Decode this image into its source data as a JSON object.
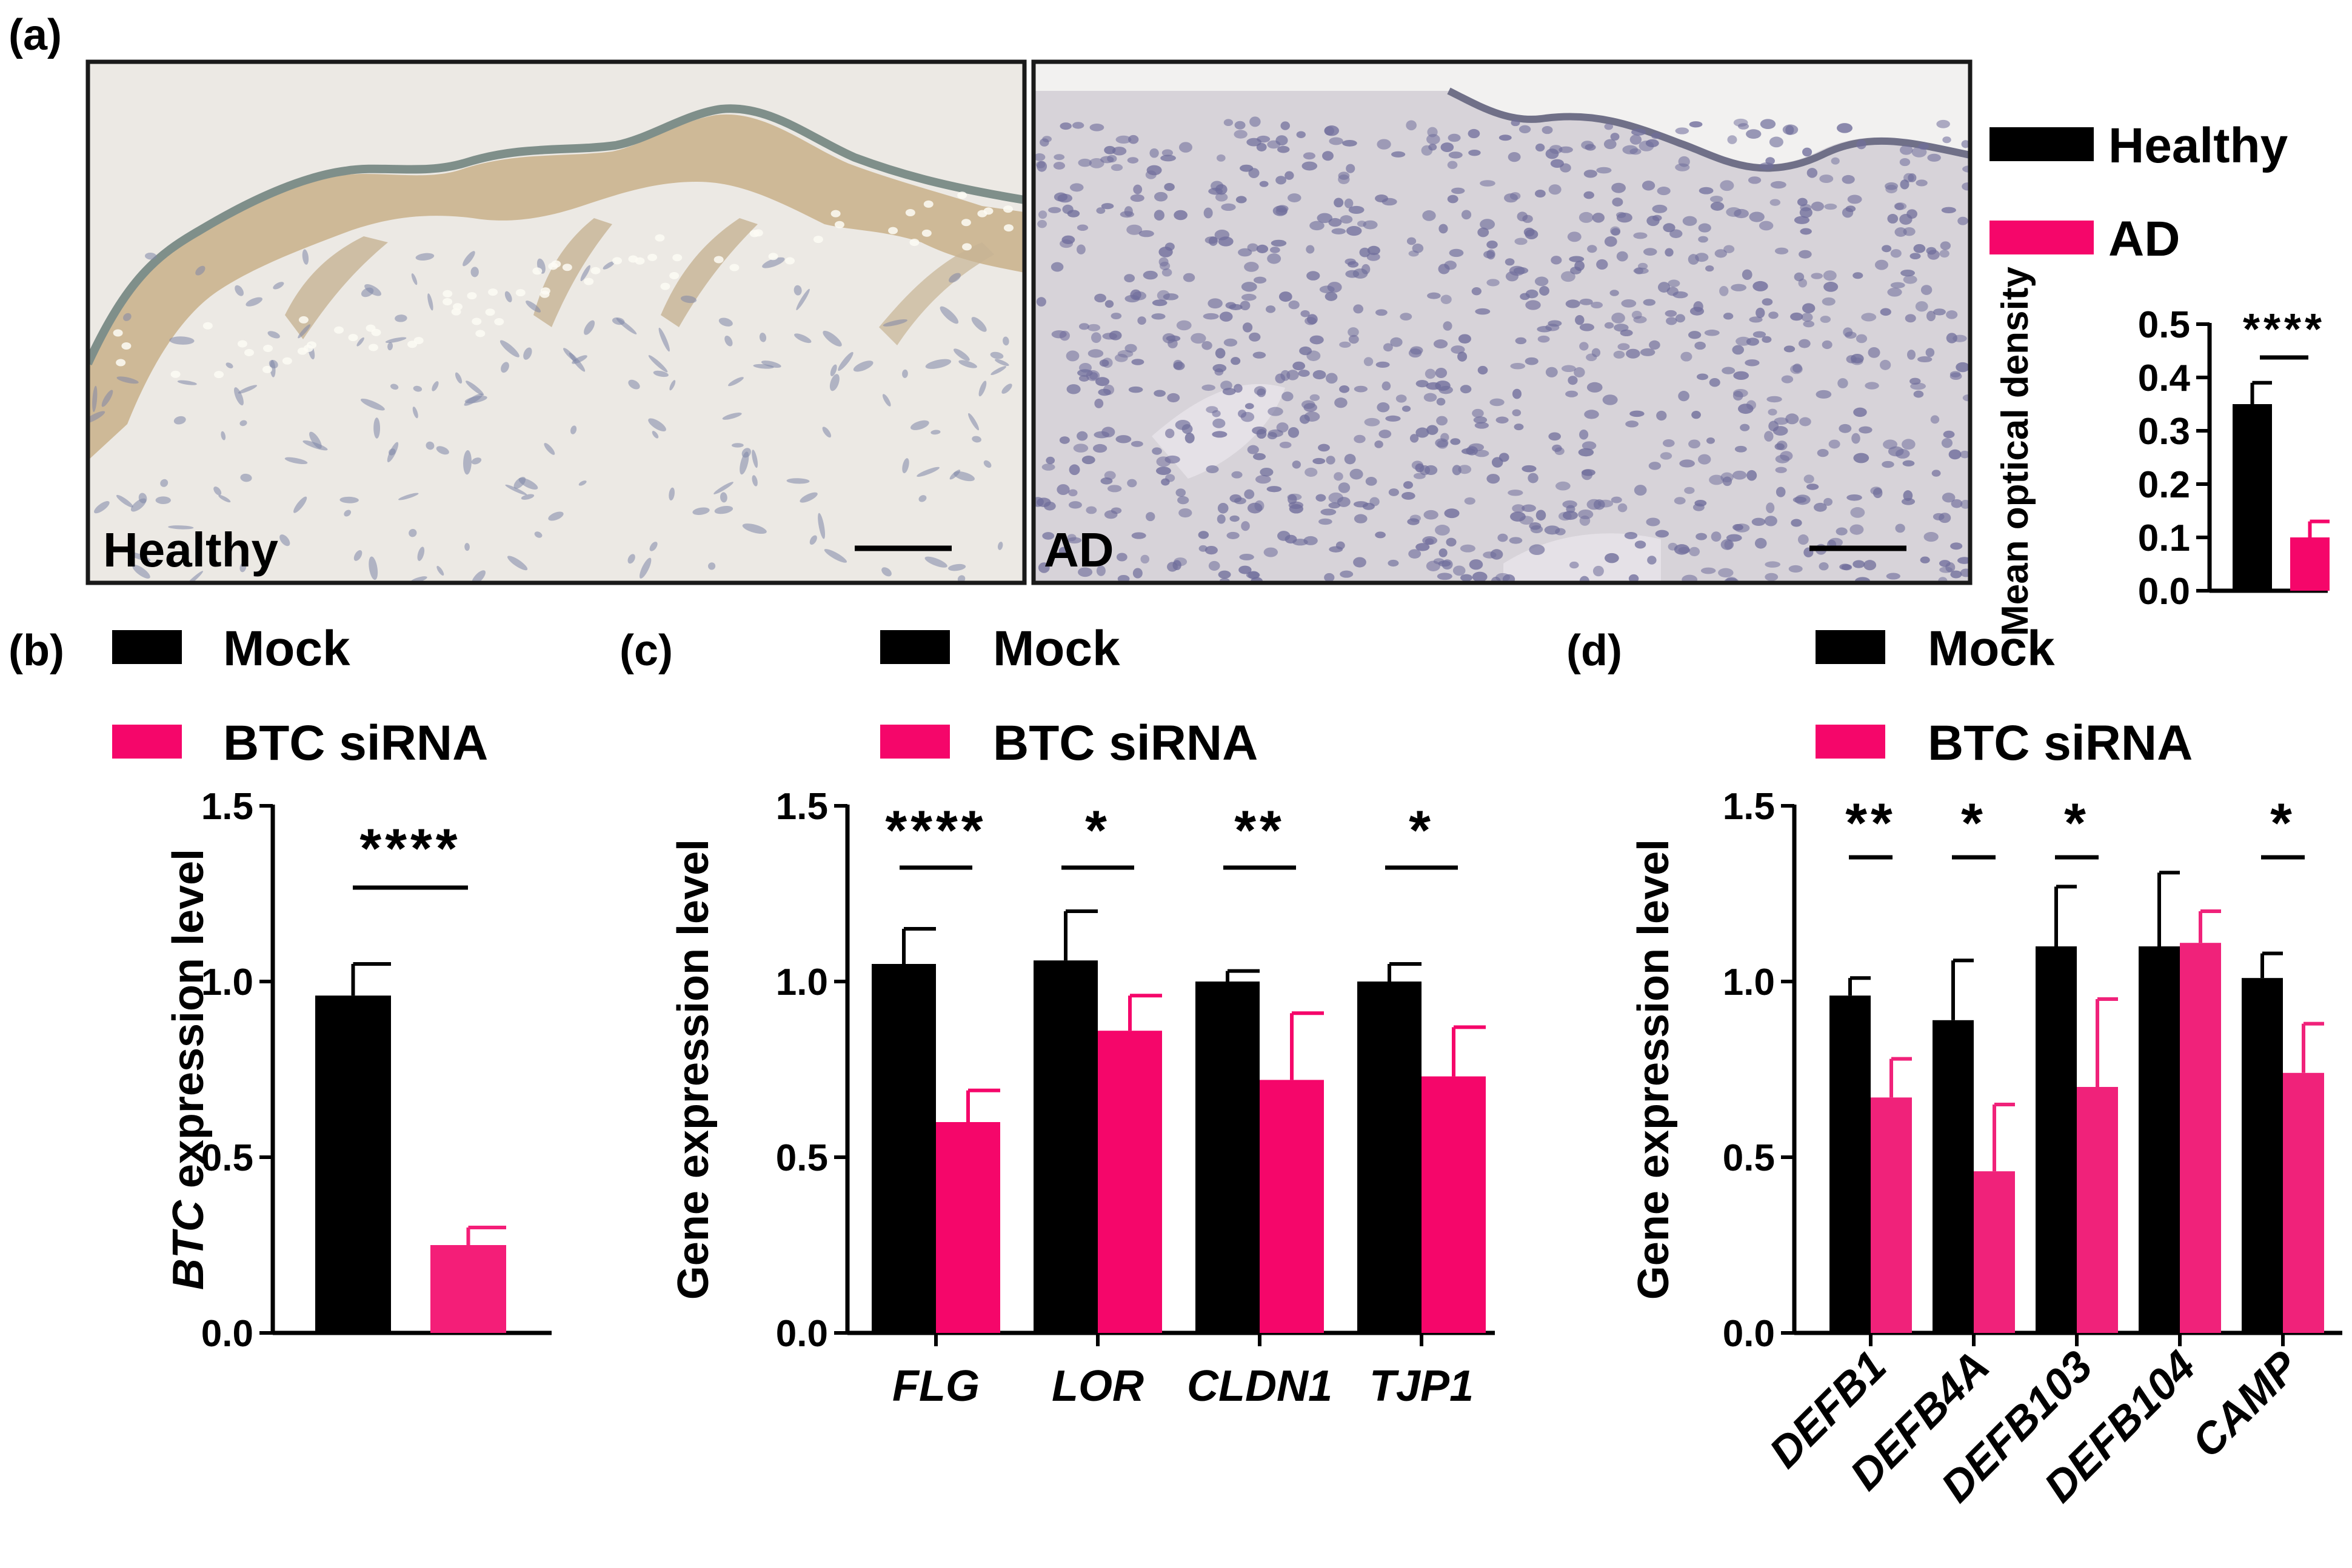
{
  "figure": {
    "panels": [
      {
        "label": "(a)"
      },
      {
        "label": "(b)"
      },
      {
        "label": "(c)"
      },
      {
        "label": "(d)"
      }
    ]
  },
  "images": [
    {
      "label": "Healthy",
      "bg": "#ece9e4",
      "stain": "#a88d68"
    },
    {
      "label": "AD",
      "bg": "#d7d3d9",
      "stain": "#8a86a8"
    }
  ],
  "colors": {
    "black": "#000000",
    "pink": "#f5066a",
    "pink_b": "#f41e78",
    "pink_d": "#f0227a"
  },
  "chart_data": [
    {
      "panel": "a",
      "type": "bar",
      "legend": [
        "Healthy",
        "AD"
      ],
      "categories": [
        "Healthy",
        "AD"
      ],
      "values": [
        0.35,
        0.1
      ],
      "errors": [
        0.04,
        0.03
      ],
      "ylabel": "Mean optical density",
      "ylim": [
        0,
        0.5
      ],
      "yticks": [
        "0.0",
        "0.1",
        "0.2",
        "0.3",
        "0.4",
        "0.5"
      ],
      "significance": [
        {
          "label": "****"
        }
      ]
    },
    {
      "panel": "b",
      "type": "bar",
      "legend": [
        "Mock",
        "BTC siRNA"
      ],
      "categories": [
        "Mock",
        "BTC siRNA"
      ],
      "values": [
        0.96,
        0.25
      ],
      "errors": [
        0.09,
        0.05
      ],
      "ylabel_italic": "BTC",
      "ylabel_rest": " expression level",
      "ylim": [
        0,
        1.5
      ],
      "yticks": [
        "0.0",
        "0.5",
        "1.0",
        "1.5"
      ],
      "significance": [
        {
          "label": "****"
        }
      ]
    },
    {
      "panel": "c",
      "type": "bar",
      "legend": [
        "Mock",
        "BTC siRNA"
      ],
      "categories": [
        "FLG",
        "LOR",
        "CLDN1",
        "TJP1"
      ],
      "series": [
        {
          "name": "Mock",
          "values": [
            1.05,
            1.06,
            1.0,
            1.0
          ],
          "errors": [
            0.1,
            0.14,
            0.03,
            0.05
          ]
        },
        {
          "name": "BTC siRNA",
          "values": [
            0.6,
            0.86,
            0.72,
            0.73
          ],
          "errors": [
            0.09,
            0.1,
            0.19,
            0.14
          ]
        }
      ],
      "ylabel": "Gene expression level",
      "ylim": [
        0,
        1.5
      ],
      "yticks": [
        "0.0",
        "0.5",
        "1.0",
        "1.5"
      ],
      "significance": [
        "****",
        "*",
        "**",
        "*"
      ]
    },
    {
      "panel": "d",
      "type": "bar",
      "legend": [
        "Mock",
        "BTC siRNA"
      ],
      "categories": [
        "DEFB1",
        "DEFB4A",
        "DEFB103",
        "DEFB104",
        "CAMP"
      ],
      "series": [
        {
          "name": "Mock",
          "values": [
            0.96,
            0.89,
            1.1,
            1.1,
            1.01
          ],
          "errors": [
            0.05,
            0.17,
            0.17,
            0.21,
            0.07
          ]
        },
        {
          "name": "BTC siRNA",
          "values": [
            0.67,
            0.46,
            0.7,
            1.11,
            0.74
          ],
          "errors": [
            0.11,
            0.19,
            0.25,
            0.09,
            0.14
          ]
        }
      ],
      "ylabel": "Gene expression level",
      "ylim": [
        0,
        1.5
      ],
      "yticks": [
        "0.0",
        "0.5",
        "1.0",
        "1.5"
      ],
      "significance": [
        "**",
        "*",
        "*",
        "",
        "*"
      ]
    }
  ]
}
